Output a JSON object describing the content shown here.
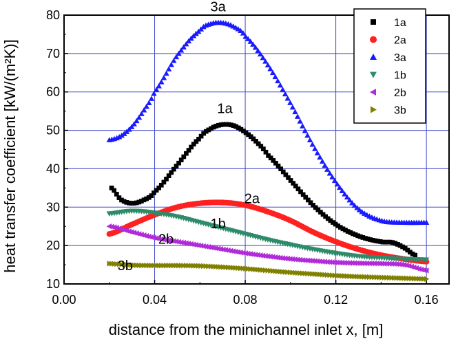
{
  "chart_data": {
    "type": "scatter",
    "xlabel": "distance from the minichannel inlet x, [m]",
    "ylabel": "heat transfer coefficient [kW/(m²K)]",
    "xlim": [
      0.0,
      0.17
    ],
    "ylim": [
      10,
      80
    ],
    "xticks": [
      "0.00",
      "0.04",
      "0.08",
      "0.12",
      "0.16"
    ],
    "yticks": [
      "10",
      "20",
      "30",
      "40",
      "50",
      "60",
      "70",
      "80"
    ],
    "grid": true,
    "legend_position": "top-right",
    "series": [
      {
        "name": "1a",
        "marker": "square",
        "color": "#000000",
        "x": [
          0.021,
          0.025,
          0.03,
          0.035,
          0.04,
          0.05,
          0.06,
          0.065,
          0.07,
          0.075,
          0.08,
          0.085,
          0.09,
          0.1,
          0.11,
          0.12,
          0.13,
          0.14,
          0.145,
          0.15,
          0.155
        ],
        "y": [
          35.0,
          32.0,
          31.0,
          31.8,
          34.0,
          41.0,
          48.0,
          50.5,
          51.5,
          51.2,
          49.5,
          47.0,
          43.5,
          37.0,
          30.5,
          25.5,
          22.5,
          21.0,
          20.8,
          19.5,
          17.5
        ]
      },
      {
        "name": "2a",
        "marker": "circle",
        "color": "#ff2020",
        "x": [
          0.02,
          0.03,
          0.04,
          0.05,
          0.06,
          0.07,
          0.08,
          0.09,
          0.1,
          0.11,
          0.12,
          0.13,
          0.14,
          0.15,
          0.16
        ],
        "y": [
          23.0,
          25.5,
          28.0,
          30.0,
          31.0,
          31.2,
          30.5,
          28.8,
          26.5,
          23.5,
          21.0,
          19.0,
          17.5,
          16.5,
          15.8
        ]
      },
      {
        "name": "3a",
        "marker": "triangle-up",
        "color": "#1a1aff",
        "x": [
          0.02,
          0.025,
          0.03,
          0.035,
          0.04,
          0.05,
          0.06,
          0.065,
          0.07,
          0.075,
          0.08,
          0.09,
          0.1,
          0.11,
          0.12,
          0.13,
          0.14,
          0.15,
          0.16
        ],
        "y": [
          47.5,
          48.5,
          51.0,
          55.0,
          60.0,
          69.5,
          76.0,
          77.8,
          78.0,
          77.0,
          74.5,
          67.0,
          57.0,
          46.0,
          36.5,
          29.5,
          26.5,
          26.0,
          26.0
        ]
      },
      {
        "name": "1b",
        "marker": "triangle-down",
        "color": "#2e8b6a",
        "x": [
          0.02,
          0.03,
          0.04,
          0.05,
          0.06,
          0.07,
          0.08,
          0.09,
          0.1,
          0.11,
          0.12,
          0.13,
          0.14,
          0.15,
          0.16
        ],
        "y": [
          28.3,
          29.0,
          28.5,
          27.5,
          26.0,
          24.5,
          23.0,
          21.5,
          20.2,
          19.0,
          18.0,
          17.2,
          16.8,
          16.5,
          16.3
        ]
      },
      {
        "name": "2b",
        "marker": "triangle-left",
        "color": "#b12bd9",
        "x": [
          0.02,
          0.03,
          0.04,
          0.05,
          0.06,
          0.07,
          0.08,
          0.09,
          0.1,
          0.11,
          0.12,
          0.13,
          0.14,
          0.15,
          0.16
        ],
        "y": [
          25.0,
          23.5,
          22.0,
          21.0,
          20.0,
          19.0,
          18.0,
          17.2,
          16.5,
          16.0,
          15.6,
          15.4,
          15.3,
          15.0,
          13.5
        ]
      },
      {
        "name": "3b",
        "marker": "triangle-right",
        "color": "#808000",
        "x": [
          0.02,
          0.03,
          0.04,
          0.05,
          0.06,
          0.07,
          0.08,
          0.09,
          0.1,
          0.11,
          0.12,
          0.13,
          0.14,
          0.15,
          0.16
        ],
        "y": [
          15.3,
          14.9,
          14.8,
          14.8,
          14.7,
          14.4,
          14.0,
          13.5,
          13.0,
          12.6,
          12.2,
          11.9,
          11.7,
          11.5,
          11.3
        ]
      }
    ],
    "annotations": [
      {
        "text": "3a",
        "x": 0.068,
        "y": 81.0
      },
      {
        "text": "1a",
        "x": 0.071,
        "y": 54.5
      },
      {
        "text": "2a",
        "x": 0.083,
        "y": 31.0
      },
      {
        "text": "1b",
        "x": 0.068,
        "y": 24.5
      },
      {
        "text": "2b",
        "x": 0.045,
        "y": 20.5
      },
      {
        "text": "3b",
        "x": 0.027,
        "y": 13.6
      }
    ]
  }
}
